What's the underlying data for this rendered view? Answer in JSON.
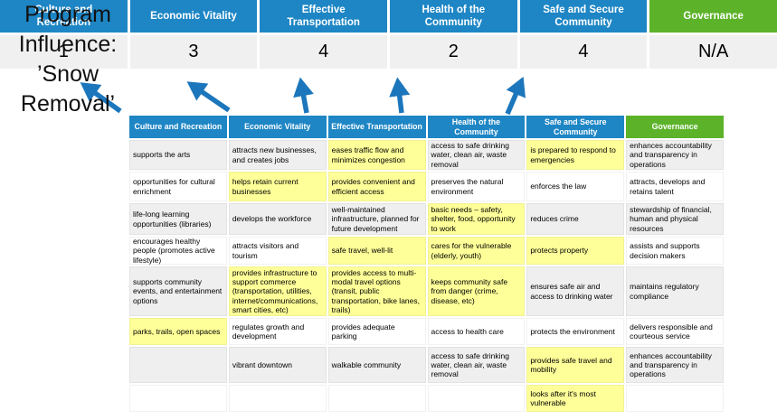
{
  "program_title": "Program Influence: ’Snow Removal’",
  "colors": {
    "header_blue": "#1E86C5",
    "header_green": "#5CB32A",
    "highlight_yellow": "#FFFF99",
    "row_gray": "#EFEFF0",
    "arrow_blue": "#1C76BC"
  },
  "scoreboard": {
    "columns": [
      {
        "label": "Culture and Recreation",
        "score": "1",
        "header_color": "blue"
      },
      {
        "label": "Economic Vitality",
        "score": "3",
        "header_color": "blue"
      },
      {
        "label": "Effective Transportation",
        "score": "4",
        "header_color": "blue"
      },
      {
        "label": "Health of the Community",
        "score": "2",
        "header_color": "blue"
      },
      {
        "label": "Safe and Secure Community",
        "score": "4",
        "header_color": "blue"
      },
      {
        "label": "Governance",
        "score": "N/A",
        "header_color": "green"
      }
    ]
  },
  "matrix": {
    "headers": [
      {
        "label": "Culture and Recreation",
        "color": "blue"
      },
      {
        "label": "Economic Vitality",
        "color": "blue"
      },
      {
        "label": "Effective Transportation",
        "color": "blue"
      },
      {
        "label": "Health of the Community",
        "color": "blue"
      },
      {
        "label": "Safe and Secure Community",
        "color": "blue"
      },
      {
        "label": "Governance",
        "color": "green"
      }
    ],
    "rows": [
      [
        {
          "text": "supports the arts",
          "highlight": false
        },
        {
          "text": "attracts new businesses, and creates jobs",
          "highlight": false
        },
        {
          "text": "eases traffic flow and minimizes congestion",
          "highlight": true
        },
        {
          "text": "access to safe drinking water, clean air, waste removal",
          "highlight": false
        },
        {
          "text": "is prepared to respond to emergencies",
          "highlight": true
        },
        {
          "text": "enhances accountability and transparency in operations",
          "highlight": false
        }
      ],
      [
        {
          "text": "opportunities for cultural enrichment",
          "highlight": false
        },
        {
          "text": "helps retain current businesses",
          "highlight": true
        },
        {
          "text": "provides convenient and efficient access",
          "highlight": true
        },
        {
          "text": "preserves the natural environment",
          "highlight": false
        },
        {
          "text": "enforces the law",
          "highlight": false
        },
        {
          "text": "attracts, develops and retains talent",
          "highlight": false
        }
      ],
      [
        {
          "text": "life-long learning opportunities (libraries)",
          "highlight": false
        },
        {
          "text": "develops the workforce",
          "highlight": false
        },
        {
          "text": "well-maintained infrastructure, planned for future development",
          "highlight": false
        },
        {
          "text": "basic needs – safety, shelter, food, opportunity to work",
          "highlight": true
        },
        {
          "text": "reduces crime",
          "highlight": false
        },
        {
          "text": "stewardship of financial, human and physical resources",
          "highlight": false
        }
      ],
      [
        {
          "text": "encourages healthy people (promotes active lifestyle)",
          "highlight": false
        },
        {
          "text": "attracts visitors and tourism",
          "highlight": false
        },
        {
          "text": "safe travel, well-lit",
          "highlight": true
        },
        {
          "text": "cares for the vulnerable (elderly, youth)",
          "highlight": true
        },
        {
          "text": "protects property",
          "highlight": true
        },
        {
          "text": "assists and supports decision makers",
          "highlight": false
        }
      ],
      [
        {
          "text": "supports community events, and entertainment options",
          "highlight": false
        },
        {
          "text": "provides infrastructure to support commerce (transportation, utilities, internet/communications, smart cities, etc)",
          "highlight": true
        },
        {
          "text": "provides access to multi-modal travel options (transit, public transportation, bike lanes, trails)",
          "highlight": true
        },
        {
          "text": "keeps community safe from danger (crime, disease, etc)",
          "highlight": true
        },
        {
          "text": "ensures safe air and access to drinking water",
          "highlight": false
        },
        {
          "text": "maintains regulatory compliance",
          "highlight": false
        }
      ],
      [
        {
          "text": "parks, trails, open spaces",
          "highlight": true
        },
        {
          "text": "regulates growth and development",
          "highlight": false
        },
        {
          "text": "provides adequate parking",
          "highlight": false
        },
        {
          "text": "access to health care",
          "highlight": false
        },
        {
          "text": "protects the environment",
          "highlight": false
        },
        {
          "text": "delivers responsible and courteous service",
          "highlight": false
        }
      ],
      [
        {
          "text": "",
          "highlight": false
        },
        {
          "text": "vibrant downtown",
          "highlight": false
        },
        {
          "text": "walkable community",
          "highlight": false
        },
        {
          "text": "access to safe drinking water, clean air, waste removal",
          "highlight": false
        },
        {
          "text": "provides safe travel and mobility",
          "highlight": true
        },
        {
          "text": "enhances accountability and transparency in operations",
          "highlight": false
        }
      ],
      [
        {
          "text": "",
          "highlight": false
        },
        {
          "text": "",
          "highlight": false
        },
        {
          "text": "",
          "highlight": false
        },
        {
          "text": "",
          "highlight": false
        },
        {
          "text": "looks after it's most vulnerable",
          "highlight": true
        },
        {
          "text": "",
          "highlight": false
        }
      ]
    ]
  }
}
